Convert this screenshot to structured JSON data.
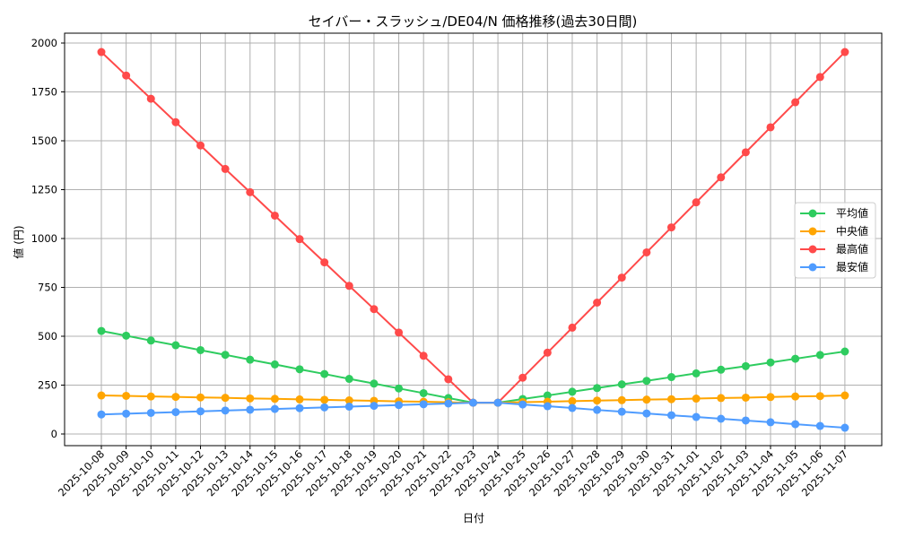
{
  "chart_data": {
    "type": "line",
    "title": "セイバー・スラッシュ/DE04/N 価格推移(過去30日間)",
    "xlabel": "日付",
    "ylabel": "値 (円)",
    "ylim": [
      -60,
      2070
    ],
    "yticks": [
      0,
      250,
      500,
      750,
      1000,
      1250,
      1500,
      1750,
      2000
    ],
    "grid": true,
    "legend_position": "center right",
    "categories": [
      "2025-10-08",
      "2025-10-09",
      "2025-10-10",
      "2025-10-11",
      "2025-10-12",
      "2025-10-13",
      "2025-10-14",
      "2025-10-15",
      "2025-10-16",
      "2025-10-17",
      "2025-10-18",
      "2025-10-19",
      "2025-10-20",
      "2025-10-21",
      "2025-10-22",
      "2025-10-23",
      "2025-10-24",
      "2025-10-25",
      "2025-10-26",
      "2025-10-27",
      "2025-10-28",
      "2025-10-29",
      "2025-10-30",
      "2025-10-31",
      "2025-11-01",
      "2025-11-02",
      "2025-11-03",
      "2025-11-04",
      "2025-11-05",
      "2025-11-06",
      "2025-11-07"
    ],
    "series": [
      {
        "name": "平均値",
        "color": "#2ecc5f",
        "values": [
          527,
          503,
          478,
          454,
          429,
          405,
          380,
          356,
          331,
          307,
          282,
          258,
          233,
          209,
          184,
          160,
          160,
          179,
          197,
          216,
          235,
          254,
          272,
          291,
          310,
          329,
          347,
          366,
          385,
          404,
          422
        ]
      },
      {
        "name": "中央値",
        "color": "#ffa500",
        "values": [
          197,
          195,
          192,
          190,
          187,
          185,
          182,
          180,
          177,
          175,
          172,
          170,
          167,
          165,
          162,
          160,
          160,
          163,
          165,
          168,
          171,
          173,
          176,
          178,
          181,
          184,
          186,
          189,
          192,
          194,
          197
        ]
      },
      {
        "name": "最高値",
        "color": "#ff4a4a",
        "values": [
          1954,
          1834,
          1715,
          1595,
          1476,
          1356,
          1237,
          1117,
          997,
          878,
          758,
          639,
          519,
          400,
          280,
          160,
          160,
          288,
          416,
          544,
          672,
          800,
          929,
          1057,
          1185,
          1313,
          1441,
          1569,
          1697,
          1826,
          1954
        ]
      },
      {
        "name": "最安値",
        "color": "#4f9cff",
        "values": [
          100,
          104,
          108,
          112,
          116,
          120,
          124,
          128,
          132,
          136,
          140,
          144,
          148,
          152,
          156,
          160,
          160,
          151,
          142,
          133,
          123,
          114,
          105,
          96,
          87,
          78,
          69,
          60,
          50,
          41,
          32
        ]
      }
    ]
  }
}
